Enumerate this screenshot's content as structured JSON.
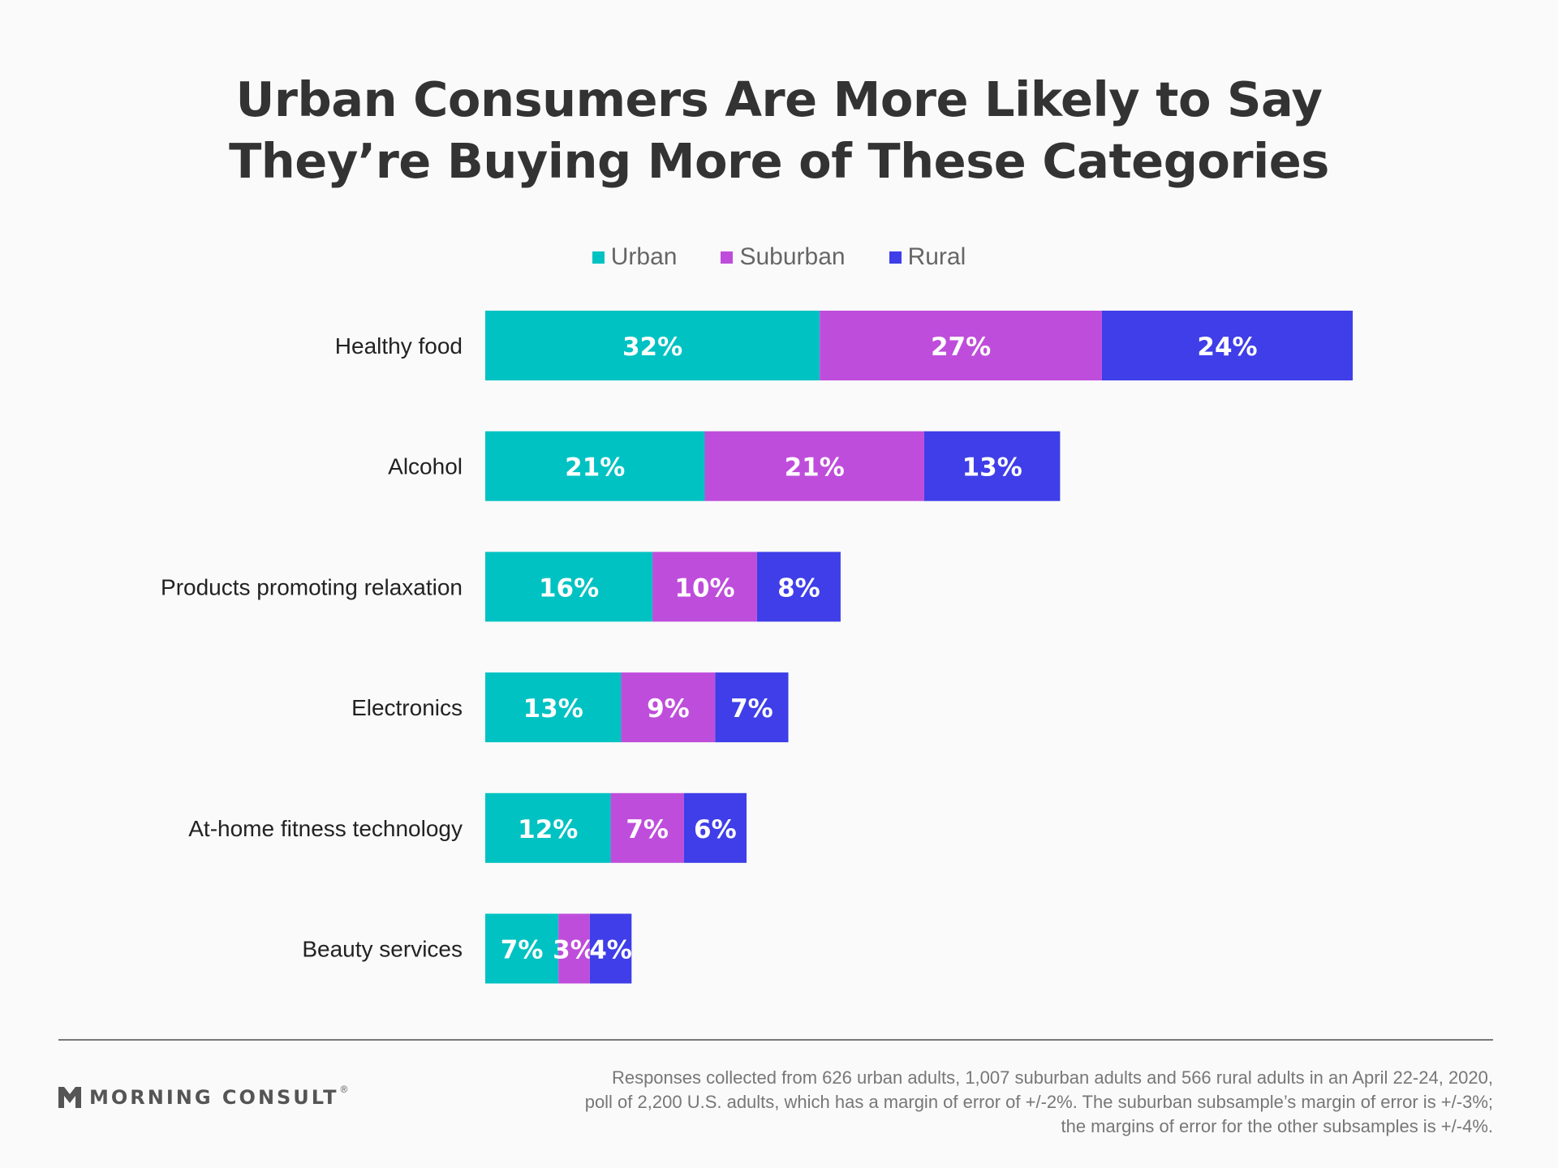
{
  "colors": {
    "urban": "#00c2c2",
    "suburban": "#bf4ddb",
    "rural": "#3f3ee8",
    "bar_label": "#ffffff",
    "category_label": "#222222"
  },
  "brand": {
    "name": "MORNING CONSULT",
    "mark": "®"
  },
  "footnote": {
    "line1": "Responses collected from 626 urban adults, 1,007 suburban adults and 566 rural adults in an April 22-24, 2020,",
    "line2": "poll of 2,200 U.S. adults, which has a margin of error of +/-2%. The suburban subsample’s margin of error is +/-3%;",
    "line3": "the margins of error for the other subsamples is +/-4%."
  },
  "chart_data": {
    "type": "bar",
    "orientation": "horizontal",
    "stacked": true,
    "title_lines": [
      "Urban Consumers Are More Likely to Say",
      "They’re Buying More of These Categories"
    ],
    "categories": [
      "Healthy food",
      "Alcohol",
      "Products promoting relaxation",
      "Electronics",
      "At-home fitness technology",
      "Beauty services"
    ],
    "series": [
      {
        "name": "Urban",
        "values": [
          32,
          21,
          16,
          13,
          12,
          7
        ],
        "labels": [
          "32%",
          "21%",
          "16%",
          "13%",
          "12%",
          "7%"
        ]
      },
      {
        "name": "Suburban",
        "values": [
          27,
          21,
          10,
          9,
          7,
          3
        ],
        "labels": [
          "27%",
          "21%",
          "10%",
          "9%",
          "7%",
          "3%"
        ]
      },
      {
        "name": "Rural",
        "values": [
          24,
          13,
          8,
          7,
          6,
          4
        ],
        "labels": [
          "24%",
          "13%",
          "8%",
          "7%",
          "6%",
          "4%"
        ]
      }
    ],
    "unit": "%",
    "xlim": [
      0,
      83
    ],
    "grid": false,
    "legend_position": "top-center"
  }
}
